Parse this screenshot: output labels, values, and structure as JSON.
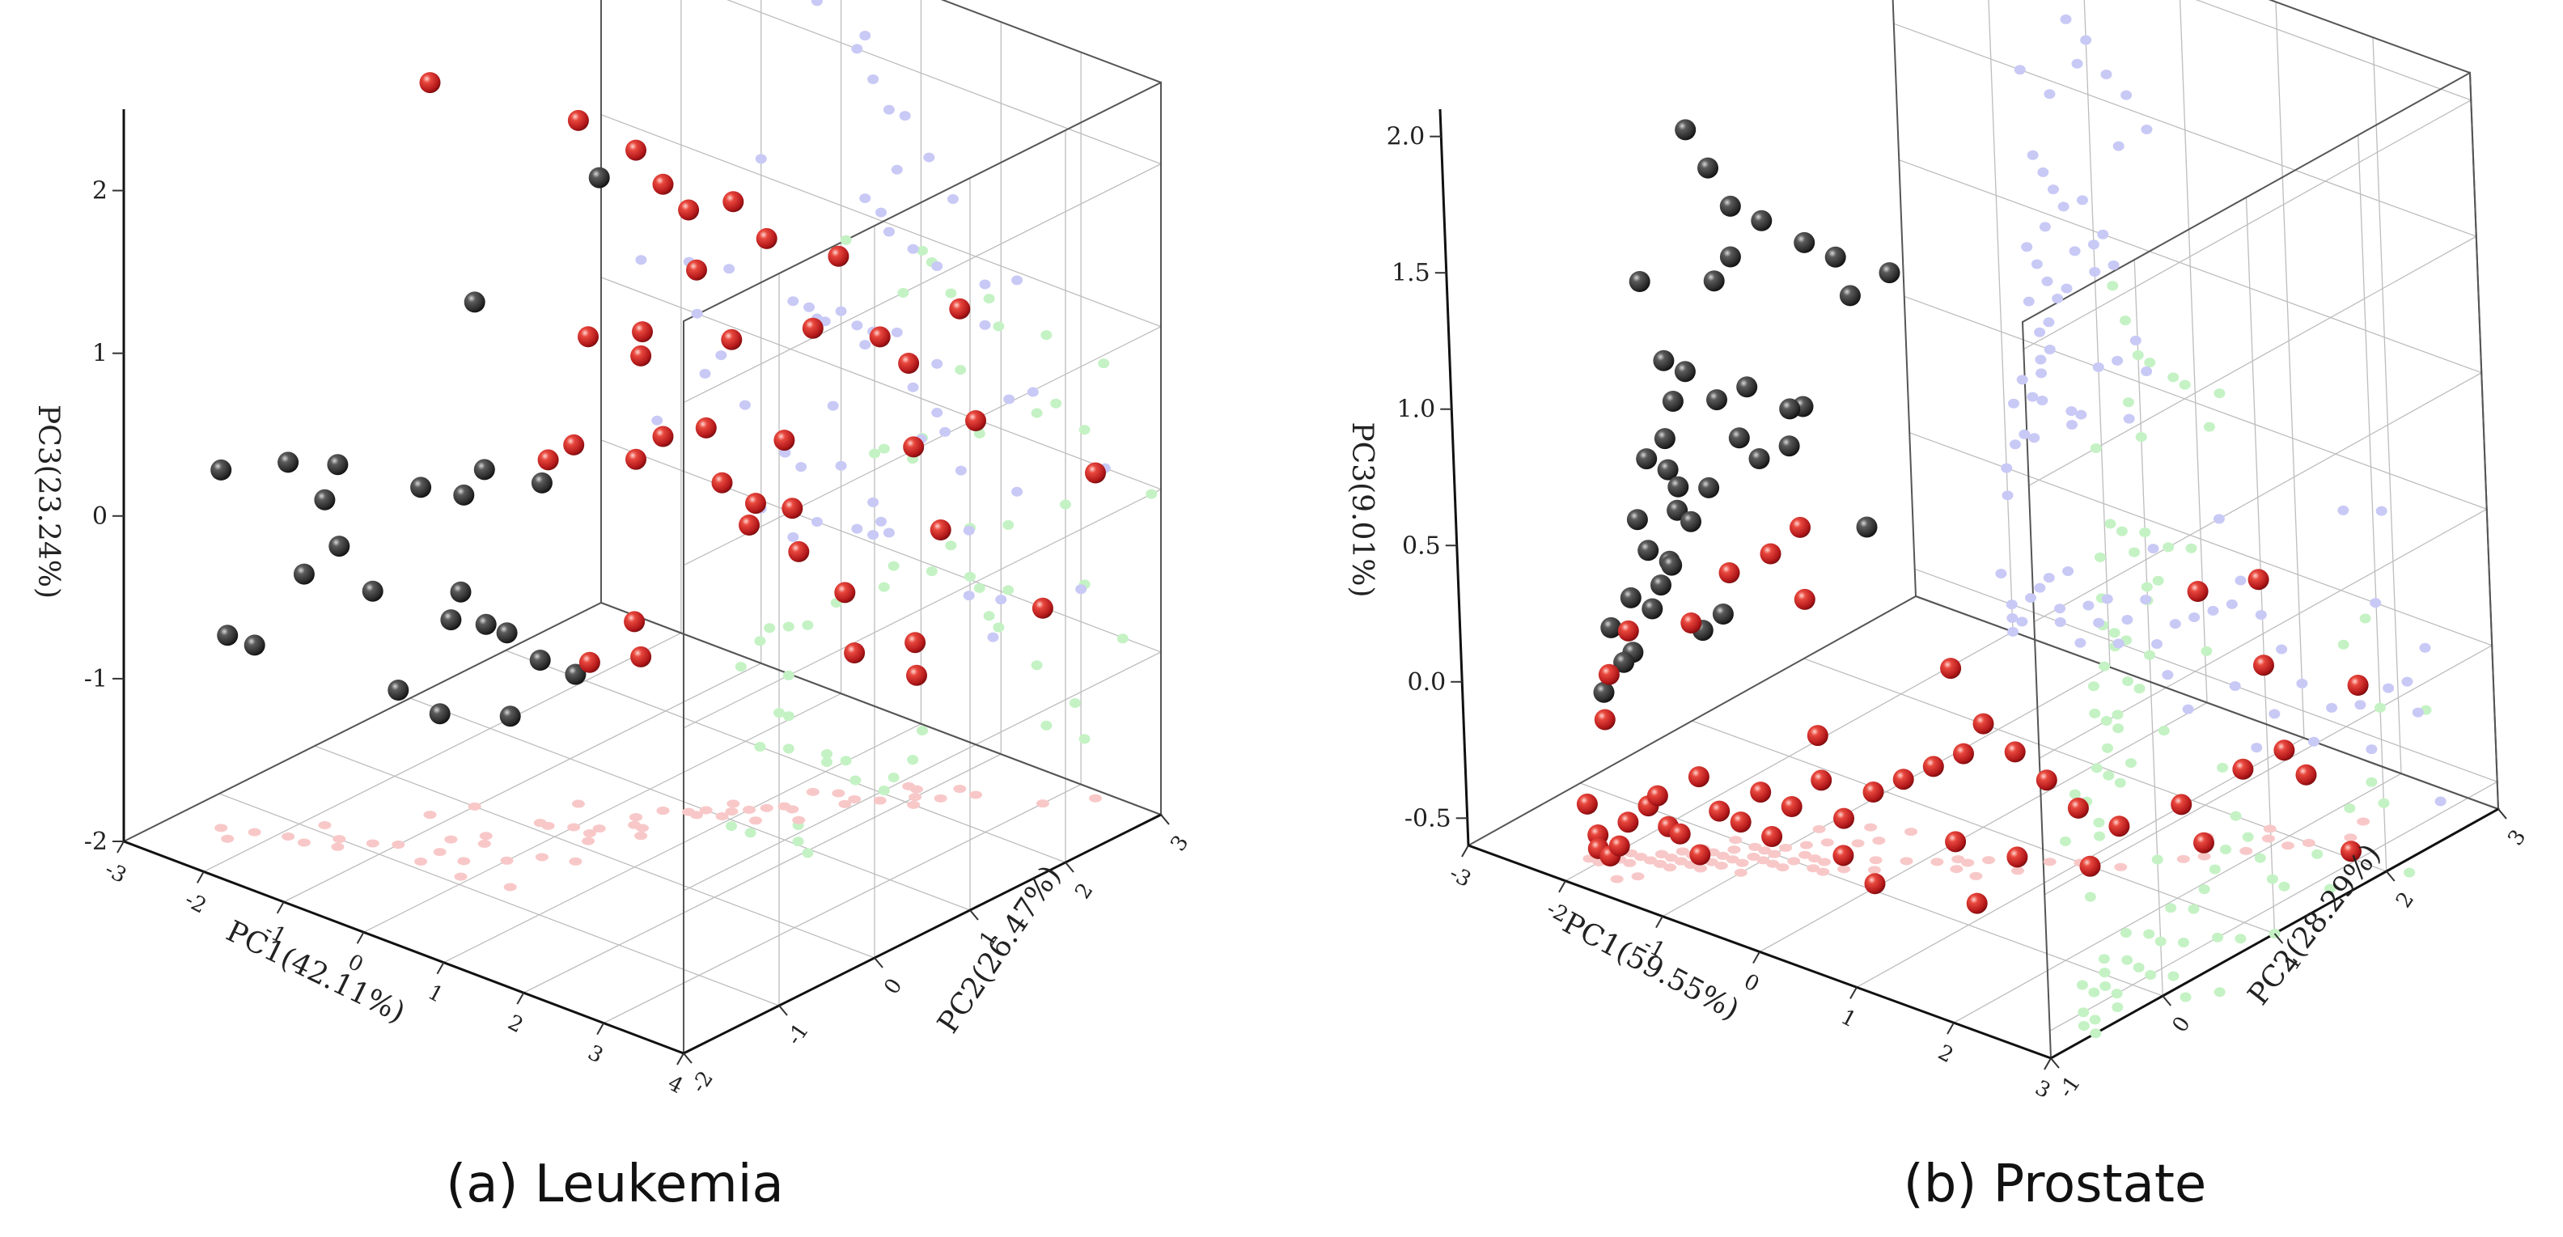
{
  "chart_data": [
    {
      "type": "scatter",
      "subtype": "3d-scatter",
      "caption": "(a) Leukemia",
      "xlabel": "PC1(42.11%)",
      "ylabel": "PC2(26.47%)",
      "zlabel": "PC3(23.24%)",
      "xlim": [
        -3,
        4
      ],
      "ylim": [
        -2,
        3
      ],
      "zlim": [
        -2,
        2.5
      ],
      "xticks": [
        "-3",
        "-2",
        "-1",
        "0",
        "1",
        "2",
        "3",
        "4"
      ],
      "yticks": [
        "-2",
        "-1",
        "0",
        "1",
        "2",
        "3"
      ],
      "zticks": [
        "-2",
        "-1",
        "0",
        "1",
        "2"
      ],
      "projections": [
        "PC1-PC3 wall (blue)",
        "PC2-PC3 wall (green)",
        "PC1-PC2 floor (red)"
      ],
      "colors": {
        "class1": "#333333",
        "class2": "#c8201e",
        "proj_xz": "#c9c9f6",
        "proj_yz": "#c4f2c4",
        "proj_xy": "#f8c8c8"
      },
      "series": [
        {
          "name": "class 1",
          "color": "#333333",
          "points": [
            [
              -2.5,
              -1.4,
              0.2
            ],
            [
              -2.2,
              -1.3,
              -0.85
            ],
            [
              -2.3,
              -1.5,
              -0.75
            ],
            [
              -1.9,
              -1.2,
              0.3
            ],
            [
              -1.4,
              -1.1,
              0.35
            ],
            [
              -1.8,
              -0.9,
              0.0
            ],
            [
              -1.7,
              -1.2,
              -0.35
            ],
            [
              -1.2,
              -0.9,
              -0.45
            ],
            [
              -1.5,
              -1.0,
              -0.2
            ],
            [
              -1.0,
              -0.8,
              -1.05
            ],
            [
              -0.6,
              -0.9,
              0.3
            ],
            [
              -0.7,
              -0.5,
              -0.65
            ],
            [
              -0.3,
              -0.7,
              0.25
            ],
            [
              -0.1,
              -0.9,
              -0.25
            ],
            [
              0.0,
              -0.5,
              -0.6
            ],
            [
              -0.4,
              -0.4,
              0.3
            ],
            [
              0.2,
              -0.3,
              0.3
            ],
            [
              0.4,
              -0.8,
              -0.95
            ],
            [
              -0.6,
              -0.7,
              -1.15
            ],
            [
              -1.0,
              0.0,
              1.1
            ],
            [
              0.2,
              0.3,
              2.0
            ],
            [
              -0.5,
              -0.3,
              -0.7
            ],
            [
              -0.3,
              0.1,
              -1.0
            ],
            [
              0.5,
              -0.2,
              -0.85
            ]
          ]
        },
        {
          "name": "class 2",
          "color": "#c8201e",
          "points": [
            [
              -1.2,
              -0.3,
              2.5
            ],
            [
              -0.3,
              0.5,
              2.2
            ],
            [
              0.3,
              0.6,
              2.1
            ],
            [
              0.4,
              0.8,
              1.85
            ],
            [
              0.6,
              0.9,
              1.7
            ],
            [
              0.8,
              1.2,
              1.7
            ],
            [
              1.1,
              1.3,
              1.5
            ],
            [
              0.7,
              0.9,
              1.35
            ],
            [
              1.4,
              1.8,
              1.3
            ],
            [
              0.3,
              0.1,
              1.1
            ],
            [
              0.5,
              0.5,
              1.05
            ],
            [
              0.6,
              0.4,
              0.95
            ],
            [
              0.9,
              1.1,
              0.9
            ],
            [
              1.2,
              1.7,
              0.85
            ],
            [
              1.8,
              1.9,
              0.85
            ],
            [
              2.2,
              2.4,
              0.95
            ],
            [
              1.8,
              2.2,
              0.6
            ],
            [
              2.4,
              2.4,
              0.3
            ],
            [
              2.1,
              2.0,
              0.2
            ],
            [
              0.4,
              0.8,
              0.3
            ],
            [
              0.7,
              1.0,
              0.35
            ],
            [
              0.3,
              0.6,
              0.2
            ],
            [
              0.9,
              1.0,
              0.05
            ],
            [
              1.2,
              1.1,
              -0.05
            ],
            [
              1.3,
              1.4,
              -0.15
            ],
            [
              1.0,
              1.2,
              -0.25
            ],
            [
              1.5,
              1.3,
              -0.35
            ],
            [
              2.2,
              2.2,
              -0.35
            ],
            [
              1.6,
              1.7,
              -0.7
            ],
            [
              3.3,
              2.9,
              0.0
            ],
            [
              3.0,
              2.6,
              -0.8
            ],
            [
              1.2,
              1.4,
              0.25
            ],
            [
              0.0,
              0.2,
              0.35
            ],
            [
              -0.2,
              0.1,
              0.25
            ],
            [
              0.4,
              0.5,
              -0.75
            ],
            [
              0.6,
              0.4,
              -0.9
            ],
            [
              0.2,
              0.2,
              -0.95
            ],
            [
              2.0,
              2.1,
              -1.05
            ],
            [
              1.6,
              1.8,
              -1.1
            ],
            [
              1.9,
              2.2,
              -1.3
            ]
          ]
        }
      ]
    },
    {
      "type": "scatter",
      "subtype": "3d-scatter",
      "caption": "(b) Prostate",
      "xlabel": "PC1(59.55%)",
      "ylabel": "PC2(28.29%)",
      "zlabel": "PC3(9.01%)",
      "xlim": [
        -3,
        3
      ],
      "ylim": [
        -1,
        3
      ],
      "zlim": [
        -0.6,
        2.1
      ],
      "xticks": [
        "-3",
        "-2",
        "-1",
        "0",
        "1",
        "2",
        "3"
      ],
      "yticks": [
        "-1",
        "0",
        "1",
        "2",
        "3"
      ],
      "zticks": [
        "-0.5",
        "0.0",
        "0.5",
        "1.0",
        "1.5",
        "2.0"
      ],
      "projections": [
        "PC1-PC3 wall (blue)",
        "PC2-PC3 wall (green)",
        "PC1-PC2 floor (red)"
      ],
      "colors": {
        "class1": "#333333",
        "class2": "#c8201e",
        "proj_xz": "#c9c9f6",
        "proj_yz": "#c4f2c4",
        "proj_xy": "#f8c8c8"
      },
      "series": [
        {
          "name": "class 1",
          "color": "#333333",
          "points": [
            [
              -1.4,
              -0.2,
              2.05
            ],
            [
              -1.3,
              -0.1,
              1.9
            ],
            [
              -1.2,
              0.0,
              1.75
            ],
            [
              -1.0,
              0.1,
              1.7
            ],
            [
              -1.1,
              -0.1,
              1.6
            ],
            [
              -0.8,
              0.3,
              1.6
            ],
            [
              -0.6,
              0.4,
              1.55
            ],
            [
              -0.4,
              0.7,
              1.45
            ],
            [
              -0.7,
              0.6,
              1.35
            ],
            [
              -1.7,
              -0.4,
              1.5
            ],
            [
              -1.4,
              0.0,
              1.45
            ],
            [
              -1.6,
              -0.3,
              1.2
            ],
            [
              -1.5,
              -0.2,
              1.15
            ],
            [
              -1.4,
              -0.4,
              1.1
            ],
            [
              -1.3,
              -0.1,
              1.05
            ],
            [
              -1.1,
              0.0,
              1.1
            ],
            [
              -1.0,
              0.4,
              0.95
            ],
            [
              -1.5,
              -0.4,
              0.95
            ],
            [
              -1.7,
              -0.4,
              0.85
            ],
            [
              -1.6,
              -0.3,
              0.8
            ],
            [
              -1.5,
              -0.3,
              0.75
            ],
            [
              -1.4,
              -0.4,
              0.7
            ],
            [
              -1.3,
              -0.2,
              0.75
            ],
            [
              -1.7,
              -0.5,
              0.65
            ],
            [
              -1.6,
              -0.5,
              0.55
            ],
            [
              -1.5,
              -0.4,
              0.5
            ],
            [
              -1.6,
              -0.3,
              0.45
            ],
            [
              -1.8,
              -0.5,
              0.35
            ],
            [
              -1.9,
              -0.6,
              0.25
            ],
            [
              -1.7,
              -0.4,
              0.3
            ],
            [
              -1.8,
              -0.5,
              0.15
            ],
            [
              -1.2,
              -0.2,
              0.3
            ],
            [
              -1.9,
              -0.5,
              0.1
            ],
            [
              -2.0,
              -0.6,
              0.0
            ],
            [
              -1.3,
              -0.3,
              0.25
            ],
            [
              -1.5,
              -0.2,
              0.6
            ],
            [
              -1.2,
              0.0,
              0.9
            ],
            [
              -0.9,
              0.2,
              1.0
            ],
            [
              -1.0,
              0.0,
              0.85
            ],
            [
              -0.5,
              0.5,
              0.55
            ],
            [
              -1.6,
              -0.4,
              0.4
            ],
            [
              -0.8,
              0.1,
              0.9
            ]
          ]
        },
        {
          "name": "class 2",
          "color": "#c8201e",
          "points": [
            [
              -2.0,
              -0.6,
              -0.1
            ],
            [
              -1.7,
              -0.8,
              0.15
            ],
            [
              -1.6,
              -0.7,
              0.3
            ],
            [
              -1.3,
              -0.4,
              0.3
            ],
            [
              -1.0,
              -0.3,
              0.5
            ],
            [
              -0.8,
              -0.1,
              0.55
            ],
            [
              -0.6,
              0.0,
              0.65
            ],
            [
              -0.7,
              0.1,
              0.35
            ],
            [
              0.2,
              0.6,
              0.1
            ],
            [
              1.5,
              1.7,
              0.3
            ],
            [
              1.9,
              1.9,
              0.35
            ],
            [
              2.3,
              2.4,
              -0.1
            ],
            [
              1.8,
              2.0,
              0.0
            ],
            [
              -0.5,
              0.0,
              -0.1
            ],
            [
              -2.0,
              -0.7,
              -0.5
            ],
            [
              -2.0,
              -0.7,
              -0.55
            ],
            [
              -2.0,
              -0.6,
              -0.6
            ],
            [
              -1.8,
              -0.6,
              -0.45
            ],
            [
              -1.7,
              -0.5,
              -0.4
            ],
            [
              -1.6,
              -0.5,
              -0.35
            ],
            [
              -1.5,
              -0.5,
              -0.45
            ],
            [
              -1.5,
              -0.4,
              -0.5
            ],
            [
              -1.4,
              -0.3,
              -0.3
            ],
            [
              -1.3,
              -0.4,
              -0.55
            ],
            [
              -1.2,
              -0.3,
              -0.4
            ],
            [
              -1.1,
              -0.2,
              -0.45
            ],
            [
              -1.0,
              -0.1,
              -0.35
            ],
            [
              -0.9,
              -0.1,
              -0.5
            ],
            [
              -0.8,
              0.0,
              -0.4
            ],
            [
              -0.6,
              0.1,
              -0.3
            ],
            [
              -0.5,
              0.2,
              -0.45
            ],
            [
              -0.3,
              0.3,
              -0.35
            ],
            [
              -0.1,
              0.4,
              -0.3
            ],
            [
              0.1,
              0.5,
              -0.25
            ],
            [
              0.3,
              0.6,
              -0.2
            ],
            [
              0.4,
              0.7,
              -0.1
            ],
            [
              0.6,
              0.8,
              -0.2
            ],
            [
              0.8,
              0.9,
              -0.3
            ],
            [
              1.0,
              1.0,
              -0.4
            ],
            [
              1.3,
              1.1,
              -0.45
            ],
            [
              1.6,
              1.4,
              -0.4
            ],
            [
              1.9,
              1.7,
              -0.3
            ],
            [
              2.1,
              1.9,
              -0.25
            ],
            [
              2.2,
              2.0,
              -0.35
            ],
            [
              0.3,
              0.5,
              -0.5
            ],
            [
              0.7,
              0.7,
              -0.55
            ],
            [
              1.1,
              1.0,
              -0.6
            ],
            [
              1.7,
              1.5,
              -0.55
            ],
            [
              2.4,
              2.2,
              -0.65
            ],
            [
              -1.9,
              -0.6,
              -0.55
            ],
            [
              -2.1,
              -0.7,
              -0.4
            ],
            [
              -0.4,
              0.1,
              -0.55
            ],
            [
              -0.2,
              0.2,
              -0.65
            ],
            [
              0.5,
              0.5,
              -0.7
            ]
          ]
        }
      ]
    }
  ]
}
